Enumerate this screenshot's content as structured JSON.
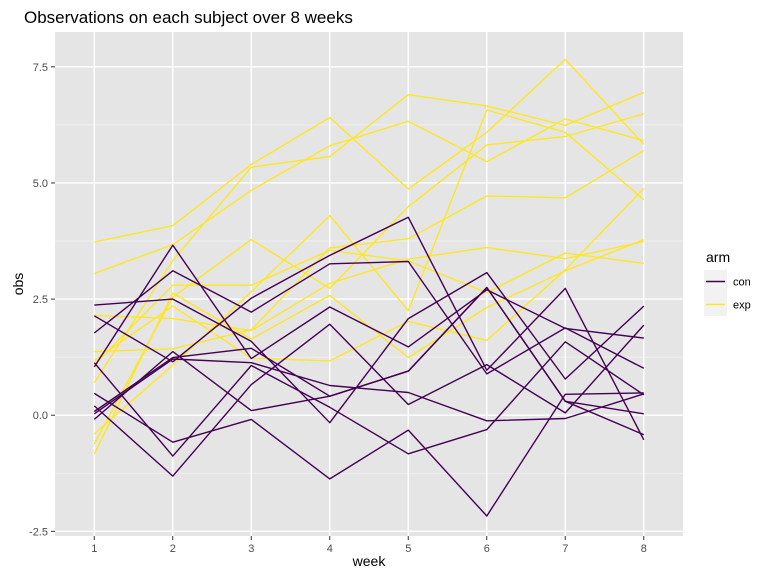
{
  "chart_data": {
    "type": "line",
    "title": "Observations on each subject over 8 weeks",
    "xlabel": "week",
    "ylabel": "obs",
    "x": [
      1,
      2,
      3,
      4,
      5,
      6,
      7,
      8
    ],
    "x_ticks": [
      "1",
      "2",
      "3",
      "4",
      "5",
      "6",
      "7",
      "8"
    ],
    "xlim": [
      0.5,
      8.5
    ],
    "ylim": [
      -2.6,
      8.25
    ],
    "y_ticks": [
      -2.5,
      0.0,
      2.5,
      5.0,
      7.5
    ],
    "y_tick_labels": [
      "-2.5",
      "0.0",
      "2.5",
      "5.0",
      "7.5"
    ],
    "grid": true,
    "background": "#e5e5e5",
    "legend": {
      "title": "arm",
      "position": "right",
      "entries": [
        {
          "label": "con",
          "color": "#440154"
        },
        {
          "label": "exp",
          "color": "#fde725"
        }
      ]
    },
    "series": [
      {
        "group": "con",
        "values": [
          0.2,
          -1.31,
          0.66,
          1.96,
          0.23,
          1.09,
          0.05,
          1.94
        ]
      },
      {
        "group": "con",
        "values": [
          1.13,
          -0.88,
          1.07,
          0.17,
          -0.83,
          -0.31,
          1.58,
          0.44
        ]
      },
      {
        "group": "con",
        "values": [
          1.77,
          3.11,
          2.22,
          3.26,
          3.31,
          0.89,
          1.88,
          1.01
        ]
      },
      {
        "group": "con",
        "values": [
          1.04,
          3.66,
          1.22,
          2.33,
          1.47,
          2.7,
          1.87,
          1.66
        ]
      },
      {
        "group": "con",
        "values": [
          0.47,
          -0.58,
          -0.09,
          -1.37,
          -0.32,
          -2.17,
          0.45,
          0.48
        ]
      },
      {
        "group": "con",
        "values": [
          2.37,
          2.5,
          1.59,
          -0.16,
          2.08,
          3.07,
          0.78,
          2.35
        ]
      },
      {
        "group": "con",
        "values": [
          0.03,
          1.21,
          1.13,
          0.64,
          0.49,
          -0.12,
          -0.07,
          0.46
        ]
      },
      {
        "group": "con",
        "values": [
          -0.09,
          1.37,
          0.1,
          0.41,
          0.95,
          2.75,
          0.3,
          0.03
        ]
      },
      {
        "group": "con",
        "values": [
          0.08,
          1.24,
          1.44,
          0.41,
          0.95,
          2.75,
          0.3,
          -0.42
        ]
      },
      {
        "group": "con",
        "values": [
          2.14,
          1.15,
          2.52,
          3.44,
          4.26,
          0.97,
          2.73,
          -0.53
        ]
      },
      {
        "group": "exp",
        "values": [
          3.05,
          3.67,
          4.84,
          5.8,
          6.33,
          5.46,
          6.38,
          5.91
        ]
      },
      {
        "group": "exp",
        "values": [
          -0.84,
          2.63,
          1.64,
          2.58,
          1.24,
          2.32,
          3.11,
          3.78
        ]
      },
      {
        "group": "exp",
        "values": [
          2.15,
          2.08,
          1.82,
          2.84,
          3.36,
          3.61,
          3.37,
          3.74
        ]
      },
      {
        "group": "exp",
        "values": [
          -0.62,
          2.54,
          3.78,
          2.73,
          4.49,
          5.82,
          6.0,
          6.49
        ]
      },
      {
        "group": "exp",
        "values": [
          0.7,
          3.33,
          5.34,
          5.57,
          6.9,
          6.66,
          6.24,
          6.95
        ]
      },
      {
        "group": "exp",
        "values": [
          3.73,
          4.08,
          5.4,
          6.41,
          4.87,
          6.09,
          7.66,
          5.83
        ]
      },
      {
        "group": "exp",
        "values": [
          1.18,
          2.35,
          1.23,
          1.17,
          2.02,
          1.61,
          3.13,
          4.88
        ]
      },
      {
        "group": "exp",
        "values": [
          1.37,
          1.43,
          1.84,
          3.6,
          3.8,
          4.72,
          4.68,
          5.7
        ]
      },
      {
        "group": "exp",
        "values": [
          -0.4,
          1.08,
          2.66,
          4.3,
          2.25,
          6.57,
          6.09,
          4.64
        ]
      },
      {
        "group": "exp",
        "values": [
          1.09,
          2.8,
          2.8,
          3.55,
          3.32,
          2.64,
          3.49,
          3.27
        ]
      }
    ]
  }
}
